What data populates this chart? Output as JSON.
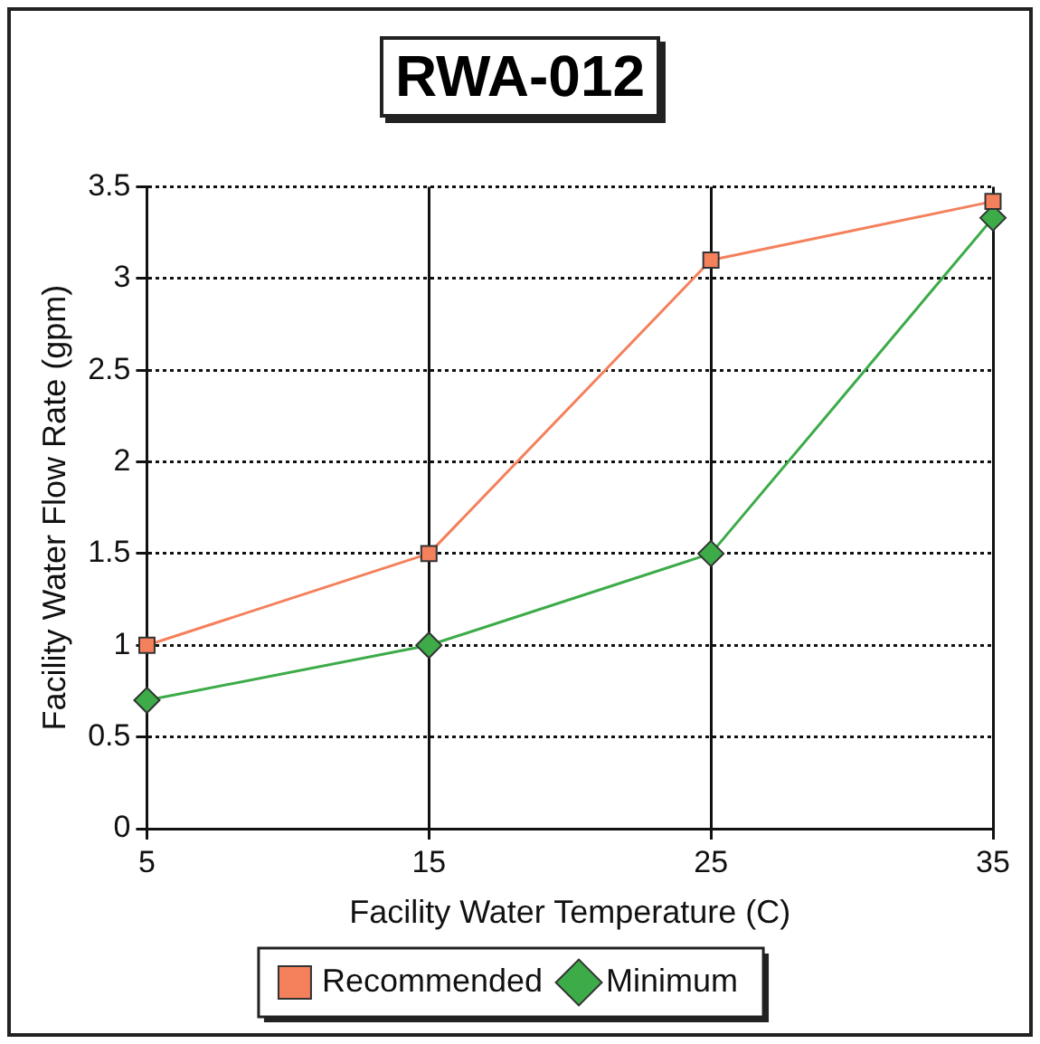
{
  "chart_data": {
    "type": "line",
    "title": "RWA-012",
    "xlabel": "Facility Water Temperature (C)",
    "ylabel": "Facility Water Flow Rate (gpm)",
    "categories": [
      "5",
      "15",
      "25",
      "35"
    ],
    "series": [
      {
        "name": "Recommended",
        "color": "#f4805c",
        "marker": "square",
        "values": [
          1,
          1.5,
          3.1,
          3.42
        ]
      },
      {
        "name": "Minimum",
        "color": "#3cab48",
        "marker": "diamond",
        "values": [
          0.7,
          1,
          1.5,
          3.33
        ]
      }
    ],
    "ylim": [
      0,
      3.5
    ],
    "yticks": [
      0,
      0.5,
      1,
      1.5,
      2,
      2.5,
      3,
      3.5
    ],
    "grid": true,
    "legend": "bottom",
    "line_style": "solid"
  }
}
